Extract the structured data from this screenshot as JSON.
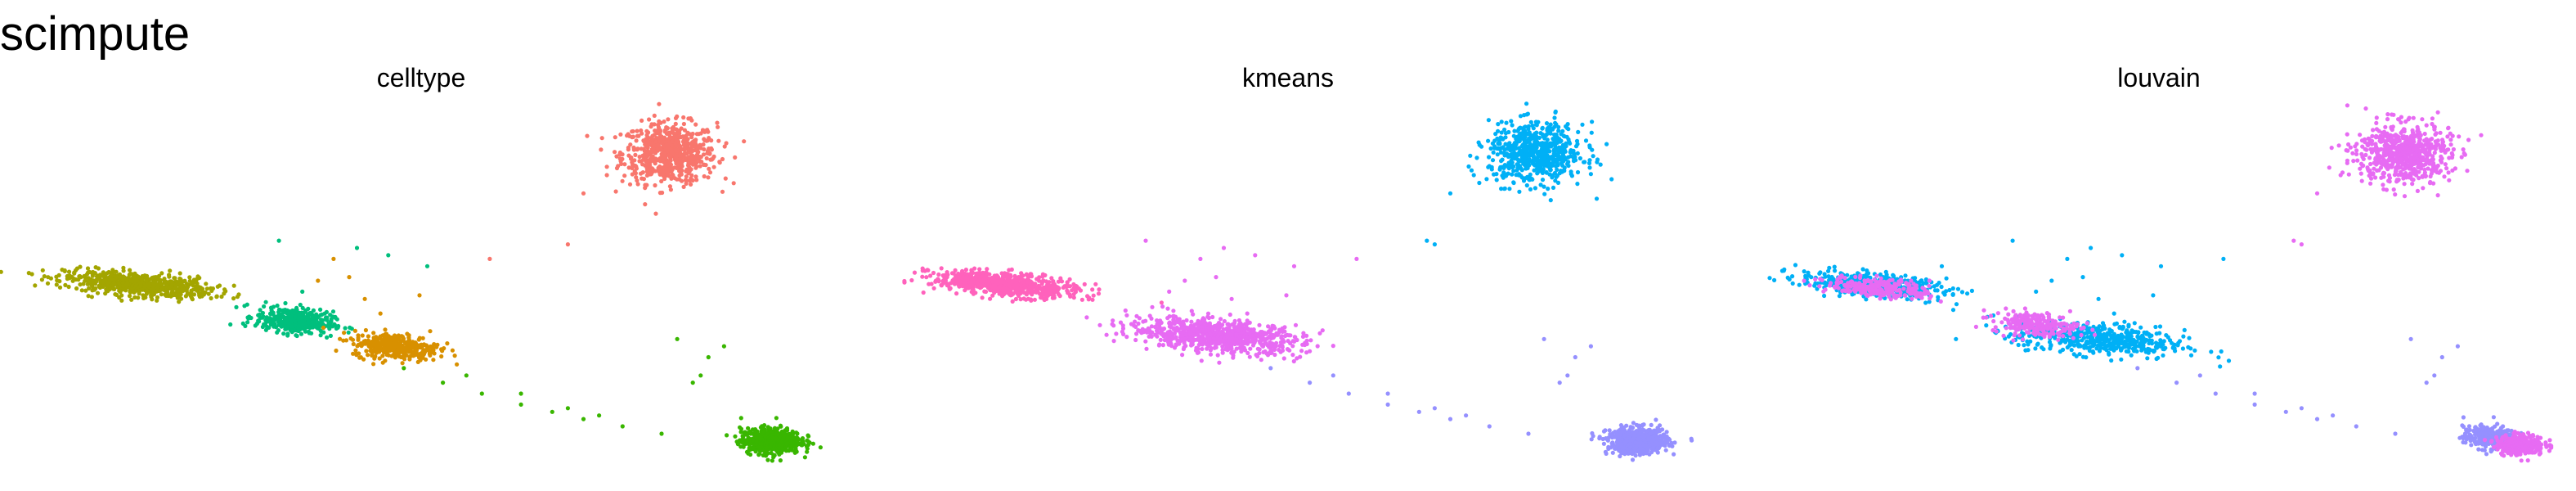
{
  "title": "scimpute",
  "colors": {
    "salmon": "#F8766D",
    "olive": "#A3A500",
    "green": "#39B600",
    "teal": "#00BF7D",
    "orange": "#D89000",
    "skyblue": "#00B0F6",
    "lavender": "#9590FF",
    "violet": "#E76BF3",
    "pink": "#FF62BC"
  },
  "chart_data": [
    {
      "type": "scatter",
      "title": "celltype",
      "xlabel": "",
      "ylabel": "",
      "grid": false,
      "axes": "none",
      "xlim": [
        0,
        100
      ],
      "ylim": [
        0,
        100
      ],
      "groups": [
        {
          "color": "salmon",
          "center": [
            81,
            86
          ],
          "spread": [
            5.5,
            7.5
          ],
          "n": 650
        },
        {
          "color": "olive",
          "center": [
            13,
            50
          ],
          "spread": [
            8.5,
            2.8
          ],
          "n": 650,
          "tilt": -0.18
        },
        {
          "color": "teal",
          "center": [
            33,
            40
          ],
          "spread": [
            4.5,
            3.2
          ],
          "n": 380,
          "tilt": -0.2
        },
        {
          "color": "orange",
          "center": [
            46,
            33
          ],
          "spread": [
            5,
            3.2
          ],
          "n": 380,
          "tilt": -0.15
        },
        {
          "color": "green",
          "center": [
            94,
            7
          ],
          "spread": [
            3.5,
            3.2
          ],
          "n": 550
        }
      ],
      "scattered": [
        {
          "color": "green",
          "points": [
            [
              47,
              27
            ],
            [
              52,
              23
            ],
            [
              57,
              20
            ],
            [
              62,
              17
            ],
            [
              66,
              15
            ],
            [
              70,
              13
            ],
            [
              75,
              11
            ],
            [
              80,
              9
            ],
            [
              84,
              23
            ],
            [
              86,
              30
            ],
            [
              82,
              35
            ],
            [
              88,
              33
            ],
            [
              85,
              25
            ],
            [
              62,
              20
            ],
            [
              55,
              25
            ],
            [
              68,
              16
            ],
            [
              72,
              14
            ]
          ]
        },
        {
          "color": "orange",
          "points": [
            [
              38,
              57
            ],
            [
              40,
              52
            ],
            [
              42,
              46
            ],
            [
              36,
              51
            ],
            [
              44,
              42
            ],
            [
              49,
              47
            ]
          ]
        },
        {
          "color": "teal",
          "points": [
            [
              31,
              62
            ],
            [
              45,
              58
            ],
            [
              50,
              55
            ],
            [
              34,
              48
            ],
            [
              41,
              60
            ]
          ]
        },
        {
          "color": "salmon",
          "points": [
            [
              58,
              57
            ],
            [
              68,
              61
            ],
            [
              70,
              75
            ],
            [
              73,
              80
            ]
          ]
        }
      ]
    },
    {
      "type": "scatter",
      "title": "kmeans",
      "xlabel": "",
      "ylabel": "",
      "grid": false,
      "axes": "none",
      "xlim": [
        0,
        100
      ],
      "ylim": [
        0,
        100
      ],
      "groups": [
        {
          "color": "skyblue",
          "center": [
            81,
            86
          ],
          "spread": [
            5.5,
            7.5
          ],
          "n": 650
        },
        {
          "color": "pink",
          "center": [
            13,
            50
          ],
          "spread": [
            8.5,
            2.8
          ],
          "n": 650,
          "tilt": -0.18
        },
        {
          "color": "violet",
          "center": [
            40,
            36
          ],
          "spread": [
            10,
            4
          ],
          "n": 760,
          "tilt": -0.18
        },
        {
          "color": "lavender",
          "center": [
            94,
            7
          ],
          "spread": [
            3.5,
            3.2
          ],
          "n": 550
        }
      ],
      "scattered": [
        {
          "color": "lavender",
          "points": [
            [
              47,
              27
            ],
            [
              52,
              23
            ],
            [
              57,
              20
            ],
            [
              62,
              17
            ],
            [
              66,
              15
            ],
            [
              70,
              13
            ],
            [
              75,
              11
            ],
            [
              80,
              9
            ],
            [
              84,
              23
            ],
            [
              86,
              30
            ],
            [
              82,
              35
            ],
            [
              88,
              33
            ],
            [
              85,
              25
            ],
            [
              62,
              20
            ],
            [
              55,
              25
            ],
            [
              68,
              16
            ],
            [
              72,
              14
            ]
          ]
        },
        {
          "color": "violet",
          "points": [
            [
              38,
              57
            ],
            [
              40,
              52
            ],
            [
              42,
              46
            ],
            [
              36,
              51
            ],
            [
              44,
              42
            ],
            [
              49,
              47
            ],
            [
              31,
              62
            ],
            [
              45,
              58
            ],
            [
              50,
              55
            ],
            [
              34,
              48
            ],
            [
              41,
              60
            ],
            [
              58,
              57
            ]
          ]
        },
        {
          "color": "skyblue",
          "points": [
            [
              68,
              61
            ],
            [
              70,
              75
            ],
            [
              73,
              80
            ],
            [
              67,
              62
            ]
          ]
        }
      ]
    },
    {
      "type": "scatter",
      "title": "louvain",
      "xlabel": "",
      "ylabel": "",
      "grid": false,
      "axes": "none",
      "xlim": [
        0,
        100
      ],
      "ylim": [
        0,
        100
      ],
      "groups": [
        {
          "color": "violet",
          "center": [
            81,
            86
          ],
          "spread": [
            5.5,
            7.5
          ],
          "n": 650
        },
        {
          "color": "skyblue",
          "center": [
            13,
            50
          ],
          "spread": [
            8.5,
            2.8
          ],
          "n": 420,
          "tilt": -0.18
        },
        {
          "color": "violet",
          "center": [
            14,
            49
          ],
          "spread": [
            6,
            2.4
          ],
          "n": 260,
          "tilt": -0.18
        },
        {
          "color": "skyblue",
          "center": [
            42,
            35
          ],
          "spread": [
            10,
            4
          ],
          "n": 520,
          "tilt": -0.18
        },
        {
          "color": "violet",
          "center": [
            34,
            39
          ],
          "spread": [
            5,
            3
          ],
          "n": 220,
          "tilt": -0.2
        },
        {
          "color": "lavender",
          "center": [
            92,
            8
          ],
          "spread": [
            3,
            2.8
          ],
          "n": 300
        },
        {
          "color": "violet",
          "center": [
            96,
            6
          ],
          "spread": [
            2.8,
            2.6
          ],
          "n": 300
        }
      ],
      "scattered": [
        {
          "color": "lavender",
          "points": [
            [
              47,
              27
            ],
            [
              52,
              23
            ],
            [
              57,
              20
            ],
            [
              62,
              17
            ],
            [
              66,
              15
            ],
            [
              70,
              13
            ],
            [
              75,
              11
            ],
            [
              80,
              9
            ],
            [
              84,
              23
            ],
            [
              86,
              30
            ],
            [
              82,
              35
            ],
            [
              88,
              33
            ],
            [
              85,
              25
            ],
            [
              62,
              20
            ],
            [
              55,
              25
            ],
            [
              68,
              16
            ],
            [
              72,
              14
            ]
          ]
        },
        {
          "color": "skyblue",
          "points": [
            [
              38,
              57
            ],
            [
              40,
              52
            ],
            [
              42,
              46
            ],
            [
              36,
              51
            ],
            [
              44,
              42
            ],
            [
              49,
              47
            ],
            [
              31,
              62
            ],
            [
              45,
              58
            ],
            [
              50,
              55
            ],
            [
              34,
              48
            ],
            [
              41,
              60
            ],
            [
              58,
              57
            ]
          ]
        },
        {
          "color": "violet",
          "points": [
            [
              68,
              61
            ],
            [
              70,
              75
            ],
            [
              73,
              80
            ],
            [
              67,
              62
            ]
          ]
        }
      ]
    }
  ]
}
